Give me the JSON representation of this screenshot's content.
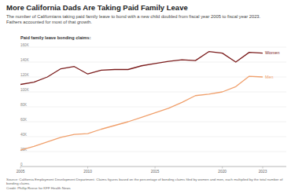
{
  "chart_data": {
    "type": "line",
    "title": "More California Dads Are Taking Paid Family Leave",
    "subtitle": "The number of Californians taking paid family leave to bond with a new child doubled from fiscal year 2005 to fiscal year 2023. Fathers accounted for most of that growth.",
    "y_label": "Paid family leave bonding claims:",
    "source": "Source: California Employment Development Department. Claims figures based on the percentage of bonding claims filed by women and men, each multiplied by the total number of bonding claims.",
    "credit": "Credit: Phillip Reese for KFF Health News",
    "x": [
      2005,
      2006,
      2007,
      2008,
      2009,
      2010,
      2011,
      2012,
      2013,
      2014,
      2015,
      2016,
      2017,
      2018,
      2019,
      2020,
      2021,
      2022,
      2023
    ],
    "series": [
      {
        "name": "Women",
        "color": "#7b1c1c",
        "values": [
          110000,
          113000,
          120000,
          131000,
          134000,
          124000,
          129000,
          130000,
          130000,
          135000,
          138000,
          141000,
          143000,
          142000,
          154000,
          152000,
          140000,
          153000,
          152000
        ]
      },
      {
        "name": "Men",
        "color": "#f0a06c",
        "values": [
          22000,
          27000,
          33000,
          39000,
          43000,
          44000,
          50000,
          55000,
          60000,
          66000,
          72000,
          78000,
          86000,
          95000,
          97000,
          100000,
          107000,
          121000,
          120000
        ]
      }
    ],
    "xlim": [
      2005,
      2023
    ],
    "xticks": [
      2005,
      2010,
      2015,
      2020,
      2023
    ],
    "ylim": [
      0,
      160000
    ],
    "yticks": [
      0,
      {
        "value": 20000,
        "label": "20K"
      },
      {
        "value": 40000,
        "label": "40K"
      },
      {
        "value": 60000,
        "label": "60K"
      },
      {
        "value": 80000,
        "label": "80K"
      },
      {
        "value": 100000,
        "label": "100K"
      },
      {
        "value": 120000,
        "label": "120K"
      },
      {
        "value": 140000,
        "label": "140K"
      },
      {
        "value": 160000,
        "label": "160K"
      }
    ],
    "grid": true
  }
}
